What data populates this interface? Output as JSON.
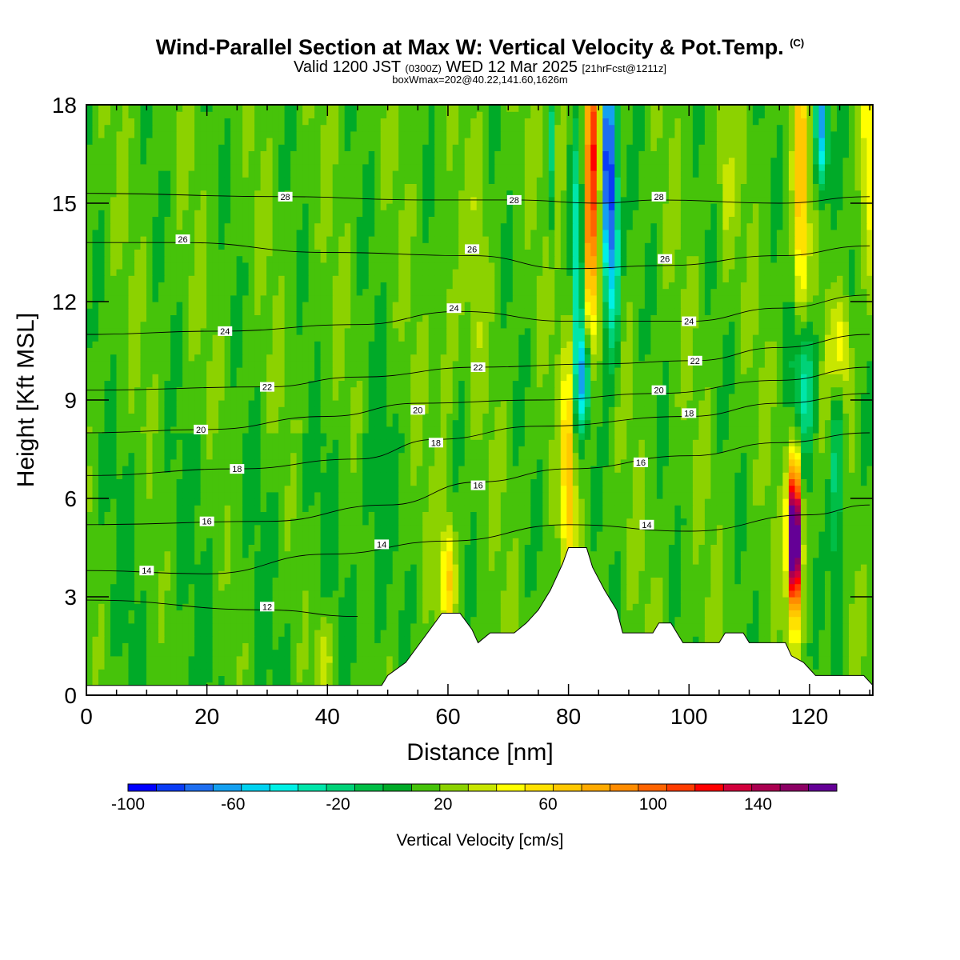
{
  "title": {
    "main": "Wind-Parallel Section at Max W: Vertical Velocity & Pot.Temp.",
    "copyright": "(C)",
    "valid_prefix": "Valid 1200 JST",
    "valid_utc": "(0300Z)",
    "valid_date": "WED 12 Mar 2025",
    "forecast": "[21hrFcst@1211z]",
    "box_info": "boxWmax=202@40.22,141.60,1626m"
  },
  "chart_data": {
    "type": "heatmap",
    "xlabel": "Distance [nm]",
    "ylabel": "Height [Kft MSL]",
    "xlim": [
      0,
      130.5
    ],
    "ylim": [
      0,
      18
    ],
    "x_ticks": [
      "0",
      "20",
      "40",
      "60",
      "80",
      "100",
      "120"
    ],
    "y_ticks": [
      "0",
      "3",
      "6",
      "9",
      "12",
      "15",
      "18"
    ],
    "colorbar": {
      "title": "Vertical Velocity [cm/s]",
      "range": [
        -100,
        170
      ],
      "step": 10,
      "tick_labels": [
        "-100",
        "-60",
        "-20",
        "20",
        "60",
        "100",
        "140"
      ],
      "colors": [
        "#0000ff",
        "#0a3cf5",
        "#1e6ef0",
        "#14a0f0",
        "#00d2f0",
        "#00f0e6",
        "#00e6aa",
        "#00d278",
        "#00be46",
        "#00aa28",
        "#46c30a",
        "#8cd200",
        "#c8e600",
        "#ffff00",
        "#ffe100",
        "#ffc800",
        "#ffaa00",
        "#ff8c00",
        "#ff6400",
        "#ff3c00",
        "#ff0000",
        "#d2003c",
        "#aa0050",
        "#8c0064",
        "#640096"
      ]
    },
    "terrain_kft": [
      [
        0,
        0.3
      ],
      [
        49,
        0.3
      ],
      [
        50,
        0.6
      ],
      [
        53,
        1.0
      ],
      [
        55,
        1.5
      ],
      [
        57,
        2.0
      ],
      [
        59,
        2.5
      ],
      [
        62,
        2.5
      ],
      [
        64,
        2.0
      ],
      [
        65,
        1.6
      ],
      [
        67,
        1.9
      ],
      [
        71,
        1.9
      ],
      [
        73,
        2.2
      ],
      [
        75,
        2.6
      ],
      [
        77,
        3.2
      ],
      [
        79,
        4.0
      ],
      [
        80,
        4.5
      ],
      [
        83,
        4.5
      ],
      [
        84,
        3.9
      ],
      [
        86,
        3.2
      ],
      [
        88,
        2.6
      ],
      [
        89,
        1.9
      ],
      [
        94,
        1.9
      ],
      [
        95,
        2.2
      ],
      [
        97,
        2.2
      ],
      [
        99,
        1.6
      ],
      [
        105,
        1.6
      ],
      [
        106,
        1.9
      ],
      [
        109,
        1.9
      ],
      [
        110,
        1.6
      ],
      [
        116,
        1.6
      ],
      [
        117,
        1.2
      ],
      [
        119,
        1.0
      ],
      [
        121,
        0.6
      ],
      [
        124,
        0.6
      ],
      [
        129,
        0.6
      ],
      [
        130.5,
        0.3
      ]
    ],
    "theta_contours": [
      {
        "label": "12",
        "points": [
          [
            0,
            2.9
          ],
          [
            30,
            2.6
          ],
          [
            45,
            2.4
          ]
        ]
      },
      {
        "label": "14",
        "points": [
          [
            0,
            3.8
          ],
          [
            20,
            3.7
          ],
          [
            40,
            4.3
          ],
          [
            60,
            4.7
          ],
          [
            80,
            5.2
          ],
          [
            100,
            5.0
          ],
          [
            120,
            5.5
          ],
          [
            130,
            5.8
          ]
        ]
      },
      {
        "label": "16",
        "points": [
          [
            0,
            5.2
          ],
          [
            30,
            5.3
          ],
          [
            50,
            5.8
          ],
          [
            65,
            6.5
          ],
          [
            80,
            6.9
          ],
          [
            100,
            7.3
          ],
          [
            115,
            7.7
          ],
          [
            130,
            8.0
          ]
        ]
      },
      {
        "label": "18",
        "points": [
          [
            0,
            6.7
          ],
          [
            25,
            6.9
          ],
          [
            45,
            7.2
          ],
          [
            58,
            7.8
          ],
          [
            75,
            8.2
          ],
          [
            100,
            8.5
          ],
          [
            115,
            8.9
          ],
          [
            130,
            9.2
          ]
        ]
      },
      {
        "label": "20",
        "points": [
          [
            0,
            8.0
          ],
          [
            20,
            8.1
          ],
          [
            40,
            8.5
          ],
          [
            55,
            8.9
          ],
          [
            75,
            9.0
          ],
          [
            95,
            9.2
          ],
          [
            115,
            9.6
          ],
          [
            130,
            10.0
          ]
        ]
      },
      {
        "label": "22",
        "points": [
          [
            0,
            9.3
          ],
          [
            30,
            9.4
          ],
          [
            45,
            9.7
          ],
          [
            65,
            10.0
          ],
          [
            85,
            10.1
          ],
          [
            101,
            10.2
          ],
          [
            115,
            10.6
          ],
          [
            130,
            11.0
          ]
        ]
      },
      {
        "label": "24",
        "points": [
          [
            0,
            11.0
          ],
          [
            22,
            11.1
          ],
          [
            45,
            11.3
          ],
          [
            62,
            11.7
          ],
          [
            80,
            11.4
          ],
          [
            100,
            11.4
          ],
          [
            115,
            11.8
          ],
          [
            130,
            12.2
          ]
        ]
      },
      {
        "label": "26",
        "points": [
          [
            0,
            13.8
          ],
          [
            16,
            13.8
          ],
          [
            40,
            13.5
          ],
          [
            64,
            13.4
          ],
          [
            80,
            13.0
          ],
          [
            96,
            13.1
          ],
          [
            115,
            13.4
          ],
          [
            130,
            13.7
          ]
        ]
      },
      {
        "label": "28",
        "points": [
          [
            0,
            15.3
          ],
          [
            33,
            15.2
          ],
          [
            55,
            15.1
          ],
          [
            71,
            15.1
          ],
          [
            85,
            15.0
          ],
          [
            95,
            15.1
          ],
          [
            115,
            15.0
          ],
          [
            130,
            15.2
          ]
        ]
      }
    ],
    "contour_labels": [
      {
        "text": "12",
        "x": 30,
        "y": 2.7
      },
      {
        "text": "14",
        "x": 10,
        "y": 3.8
      },
      {
        "text": "14",
        "x": 49,
        "y": 4.6
      },
      {
        "text": "14",
        "x": 93,
        "y": 5.2
      },
      {
        "text": "16",
        "x": 20,
        "y": 5.3
      },
      {
        "text": "16",
        "x": 65,
        "y": 6.4
      },
      {
        "text": "16",
        "x": 92,
        "y": 7.1
      },
      {
        "text": "18",
        "x": 25,
        "y": 6.9
      },
      {
        "text": "18",
        "x": 58,
        "y": 7.7
      },
      {
        "text": "18",
        "x": 100,
        "y": 8.6
      },
      {
        "text": "20",
        "x": 19,
        "y": 8.1
      },
      {
        "text": "20",
        "x": 55,
        "y": 8.7
      },
      {
        "text": "20",
        "x": 95,
        "y": 9.3
      },
      {
        "text": "22",
        "x": 30,
        "y": 9.4
      },
      {
        "text": "22",
        "x": 65,
        "y": 10.0
      },
      {
        "text": "22",
        "x": 101,
        "y": 10.2
      },
      {
        "text": "24",
        "x": 23,
        "y": 11.1
      },
      {
        "text": "24",
        "x": 61,
        "y": 11.8
      },
      {
        "text": "24",
        "x": 100,
        "y": 11.4
      },
      {
        "text": "26",
        "x": 16,
        "y": 13.9
      },
      {
        "text": "26",
        "x": 64,
        "y": 13.6
      },
      {
        "text": "26",
        "x": 96,
        "y": 13.3
      },
      {
        "text": "28",
        "x": 33,
        "y": 15.2
      },
      {
        "text": "28",
        "x": 71,
        "y": 15.1
      },
      {
        "text": "28",
        "x": 95,
        "y": 15.2
      }
    ],
    "w_features": [
      {
        "x": 80,
        "y": 6.8,
        "sx": 0.8,
        "sy": 2.6,
        "w": 50
      },
      {
        "x": 84,
        "y": 16.5,
        "sx": 0.9,
        "sy": 3.0,
        "w": 85
      },
      {
        "x": 83.5,
        "y": 12.8,
        "sx": 0.7,
        "sy": 2.0,
        "w": 35
      },
      {
        "x": 86.5,
        "y": 16.5,
        "sx": 0.8,
        "sy": 2.8,
        "w": -95
      },
      {
        "x": 87.5,
        "y": 13.5,
        "sx": 0.8,
        "sy": 2.2,
        "w": -50
      },
      {
        "x": 81.5,
        "y": 12.8,
        "sx": 0.6,
        "sy": 3.0,
        "w": -50
      },
      {
        "x": 82.5,
        "y": 9.6,
        "sx": 0.8,
        "sy": 1.0,
        "w": -55
      },
      {
        "x": 78.5,
        "y": 16.8,
        "sx": 0.5,
        "sy": 2.2,
        "w": 25
      },
      {
        "x": 77.5,
        "y": 16.5,
        "sx": 0.5,
        "sy": 1.8,
        "w": -30
      },
      {
        "x": 117.5,
        "y": 4.8,
        "sx": 0.7,
        "sy": 1.5,
        "w": 200
      },
      {
        "x": 118.5,
        "y": 15.5,
        "sx": 0.8,
        "sy": 3.2,
        "w": 55
      },
      {
        "x": 119,
        "y": 9.6,
        "sx": 1.2,
        "sy": 1.4,
        "w": -45
      },
      {
        "x": 122,
        "y": 17.4,
        "sx": 0.7,
        "sy": 1.4,
        "w": -70
      },
      {
        "x": 124.5,
        "y": 7.0,
        "sx": 0.8,
        "sy": 3.0,
        "w": -35
      },
      {
        "x": 125,
        "y": 10.5,
        "sx": 1.2,
        "sy": 1.2,
        "w": 40
      },
      {
        "x": 130,
        "y": 16.5,
        "sx": 1.2,
        "sy": 2.5,
        "w": 30
      },
      {
        "x": 60,
        "y": 3.6,
        "sx": 0.8,
        "sy": 1.2,
        "w": 45
      },
      {
        "x": 60,
        "y": 11.0,
        "sx": 1.0,
        "sy": 2.0,
        "w": 15
      },
      {
        "x": 65,
        "y": 13.5,
        "sx": 1.0,
        "sy": 2.5,
        "w": 10
      },
      {
        "x": 39.5,
        "y": 1.2,
        "sx": 1.0,
        "sy": 1.0,
        "w": 25
      },
      {
        "x": 106,
        "y": 15.5,
        "sx": 1.0,
        "sy": 2.0,
        "w": 15
      },
      {
        "x": 48,
        "y": 6.0,
        "sx": 2.0,
        "sy": 3.5,
        "w": -8
      }
    ]
  }
}
